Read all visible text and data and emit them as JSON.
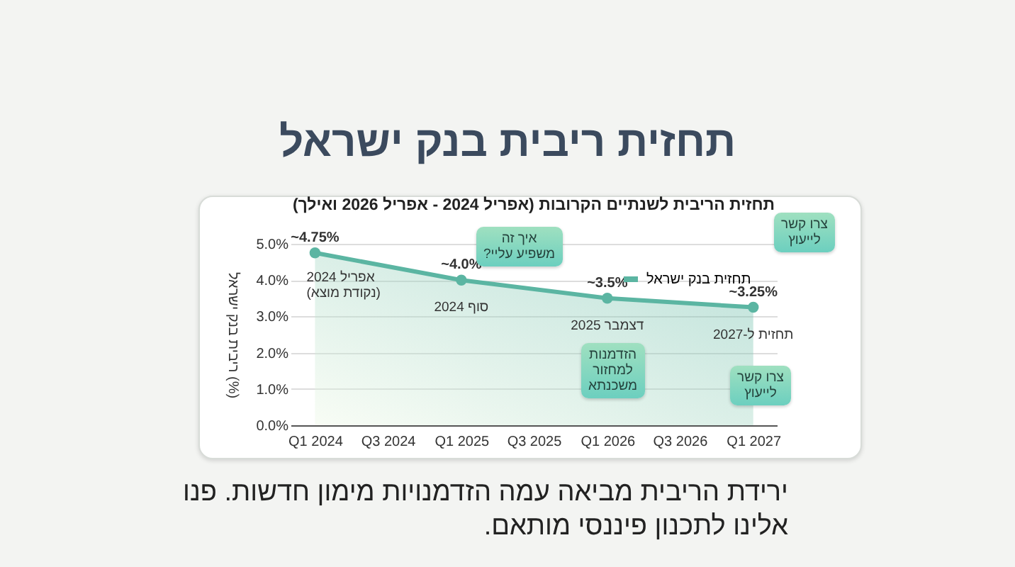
{
  "chart_data": {
    "type": "area",
    "title": "תחזית ריבית בנק ישראל",
    "subtitle": "תחזית הריבית לשנתיים הקרובות (אפריל 2024 - אפריל 2026 ואילך)",
    "ylabel": "ריבית בנק ישראל (%)",
    "x": [
      "2024-01",
      "2025-01",
      "2026-01",
      "2027-01"
    ],
    "series": [
      {
        "name": "תחזית בנק ישראל",
        "color": "#5bb5a2",
        "values": [
          4.75,
          4.0,
          3.5,
          3.25
        ],
        "value_labels": [
          "~4.75%",
          "~4.0%",
          "~3.5%",
          "~3.25%"
        ]
      }
    ],
    "xlim": [
      "2023-11",
      "2027-03"
    ],
    "xticks": [
      {
        "value": "2024-01",
        "label": "Q1 2024"
      },
      {
        "value": "2024-07",
        "label": "Q3 2024"
      },
      {
        "value": "2025-01",
        "label": "Q1 2025"
      },
      {
        "value": "2025-07",
        "label": "Q3 2025"
      },
      {
        "value": "2026-01",
        "label": "Q1 2026"
      },
      {
        "value": "2026-07",
        "label": "Q3 2026"
      },
      {
        "value": "2027-01",
        "label": "Q1 2027"
      }
    ],
    "ylim": [
      0,
      5
    ],
    "yticks": [
      {
        "value": 0,
        "label": "0.0%"
      },
      {
        "value": 1,
        "label": "1.0%"
      },
      {
        "value": 2,
        "label": "2.0%"
      },
      {
        "value": 3,
        "label": "3.0%"
      },
      {
        "value": 4,
        "label": "4.0%"
      },
      {
        "value": 5,
        "label": "5.0%"
      }
    ],
    "grid": "y",
    "legend": "top right",
    "marker": "circle",
    "annotations": [
      {
        "text": "אפריל 2024\n(נקודת מוצא)",
        "x": "2024-01",
        "y": 4.75
      },
      {
        "text": "סוף 2024",
        "x": "2025-01",
        "y": 4.0
      },
      {
        "text": "דצמבר 2025",
        "x": "2026-01",
        "y": 3.5
      },
      {
        "text": "תחזית ל-2027",
        "x": "2027-01",
        "y": 3.25
      },
      "איך זה\nמשפיע עליי?",
      "צרו קשר\nלייעוץ",
      "הזדמנות\nלמחזור\nמשכנתא",
      "צרו קשר\nלייעוץ",
      "ירידת הריבית מביאה עמה הזדמנויות מימון חדשות. פנו אלינו לתכנון פיננסי מותאם."
    ]
  }
}
